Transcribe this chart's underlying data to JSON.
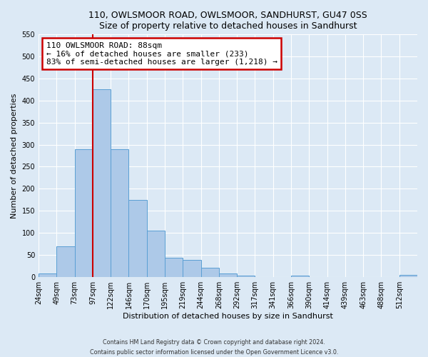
{
  "title": "110, OWLSMOOR ROAD, OWLSMOOR, SANDHURST, GU47 0SS",
  "subtitle": "Size of property relative to detached houses in Sandhurst",
  "xlabel": "Distribution of detached houses by size in Sandhurst",
  "ylabel": "Number of detached properties",
  "bin_labels": [
    "24sqm",
    "49sqm",
    "73sqm",
    "97sqm",
    "122sqm",
    "146sqm",
    "170sqm",
    "195sqm",
    "219sqm",
    "244sqm",
    "268sqm",
    "292sqm",
    "317sqm",
    "341sqm",
    "366sqm",
    "390sqm",
    "414sqm",
    "439sqm",
    "463sqm",
    "488sqm",
    "512sqm"
  ],
  "bar_values": [
    8,
    70,
    290,
    425,
    290,
    175,
    105,
    43,
    38,
    20,
    8,
    2,
    0,
    0,
    3,
    0,
    0,
    0,
    0,
    0,
    5
  ],
  "bar_color": "#adc9e8",
  "bar_edge_color": "#5a9fd4",
  "vline_bar_index": 3,
  "vline_color": "#cc0000",
  "annotation_text": "110 OWLSMOOR ROAD: 88sqm\n← 16% of detached houses are smaller (233)\n83% of semi-detached houses are larger (1,218) →",
  "annotation_box_color": "#ffffff",
  "annotation_box_edge_color": "#cc0000",
  "ylim": [
    0,
    550
  ],
  "yticks": [
    0,
    50,
    100,
    150,
    200,
    250,
    300,
    350,
    400,
    450,
    500,
    550
  ],
  "footer_line1": "Contains HM Land Registry data © Crown copyright and database right 2024.",
  "footer_line2": "Contains public sector information licensed under the Open Government Licence v3.0.",
  "bg_color": "#dce9f5",
  "plot_bg_color": "#dce9f5",
  "grid_color": "#ffffff",
  "title_fontsize": 9,
  "subtitle_fontsize": 8.5,
  "tick_fontsize": 7,
  "axis_label_fontsize": 8
}
